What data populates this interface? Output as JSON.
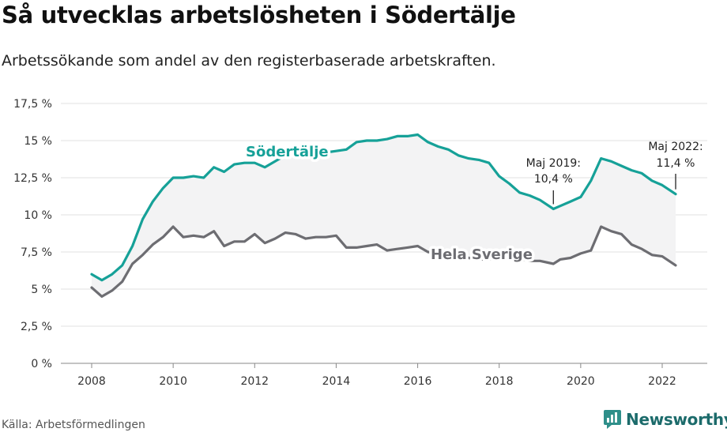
{
  "header": {
    "title": "Så utvecklas arbetslösheten i Södertälje",
    "subtitle": "Arbetssökande som andel av den registerbaserade arbetskraften."
  },
  "footer": {
    "source": "Källa: Arbetsförmedlingen",
    "brand": "Newsworthy"
  },
  "chart_data": {
    "type": "line",
    "title": "Så utvecklas arbetslösheten i Södertälje",
    "subtitle": "Arbetssökande som andel av den registerbaserade arbetskraften.",
    "xlabel": "",
    "ylabel": "",
    "xlim": [
      2007.5,
      2023.1
    ],
    "ylim": [
      0,
      17.5
    ],
    "grid": true,
    "x_ticks": [
      2008,
      2010,
      2012,
      2014,
      2016,
      2018,
      2020,
      2022
    ],
    "x_tick_labels": [
      "2008",
      "2010",
      "2012",
      "2014",
      "2016",
      "2018",
      "2020",
      "2022"
    ],
    "y_ticks": [
      0,
      2.5,
      5,
      7.5,
      10,
      12.5,
      15,
      17.5
    ],
    "y_tick_labels": [
      "0 %",
      "2,5 %",
      "5 %",
      "7,5 %",
      "10 %",
      "12,5 %",
      "15 %",
      "17,5 %"
    ],
    "x": [
      2008.0,
      2008.25,
      2008.5,
      2008.75,
      2009.0,
      2009.25,
      2009.5,
      2009.75,
      2010.0,
      2010.25,
      2010.5,
      2010.75,
      2011.0,
      2011.25,
      2011.5,
      2011.75,
      2012.0,
      2012.25,
      2012.5,
      2012.75,
      2013.0,
      2013.25,
      2013.5,
      2013.75,
      2014.0,
      2014.25,
      2014.5,
      2014.75,
      2015.0,
      2015.25,
      2015.5,
      2015.75,
      2016.0,
      2016.25,
      2016.5,
      2016.75,
      2017.0,
      2017.25,
      2017.5,
      2017.75,
      2018.0,
      2018.25,
      2018.5,
      2018.75,
      2019.0,
      2019.33,
      2019.5,
      2019.75,
      2020.0,
      2020.25,
      2020.5,
      2020.75,
      2021.0,
      2021.25,
      2021.5,
      2021.75,
      2022.0,
      2022.33
    ],
    "series": [
      {
        "name": "Södertälje",
        "color": "#16a198",
        "values": [
          6.0,
          5.6,
          6.0,
          6.6,
          7.9,
          9.7,
          10.9,
          11.8,
          12.5,
          12.5,
          12.6,
          12.5,
          13.2,
          12.9,
          13.4,
          13.5,
          13.5,
          13.2,
          13.6,
          14.0,
          14.2,
          14.3,
          14.2,
          14.2,
          14.3,
          14.4,
          14.9,
          15.0,
          15.0,
          15.1,
          15.3,
          15.3,
          15.4,
          14.9,
          14.6,
          14.4,
          14.0,
          13.8,
          13.7,
          13.5,
          12.6,
          12.1,
          11.5,
          11.3,
          11.0,
          10.4,
          10.6,
          10.9,
          11.2,
          12.3,
          13.8,
          13.6,
          13.3,
          13.0,
          12.8,
          12.3,
          12.0,
          11.4
        ]
      },
      {
        "name": "Hela Sverige",
        "color": "#6d6d72",
        "values": [
          5.1,
          4.5,
          4.9,
          5.5,
          6.7,
          7.3,
          8.0,
          8.5,
          9.2,
          8.5,
          8.6,
          8.5,
          8.9,
          7.9,
          8.2,
          8.2,
          8.7,
          8.1,
          8.4,
          8.8,
          8.7,
          8.4,
          8.5,
          8.5,
          8.6,
          7.8,
          7.8,
          7.9,
          8.0,
          7.6,
          7.7,
          7.8,
          7.9,
          7.5,
          7.4,
          7.2,
          7.1,
          7.1,
          7.0,
          7.0,
          7.2,
          7.0,
          7.0,
          6.9,
          6.9,
          6.7,
          7.0,
          7.1,
          7.4,
          7.6,
          9.2,
          8.9,
          8.7,
          8.0,
          7.7,
          7.3,
          7.2,
          6.6
        ]
      }
    ],
    "series_labels": {
      "sodertalje": "Södertälje",
      "sverige": "Hela Sverige"
    },
    "annotations": [
      {
        "label_line1": "Maj 2019:",
        "label_line2": "10,4 %",
        "x": 2019.33,
        "y": 10.4
      },
      {
        "label_line1": "Maj 2022:",
        "label_line2": "11,4 %",
        "x": 2022.33,
        "y": 11.4
      }
    ]
  }
}
